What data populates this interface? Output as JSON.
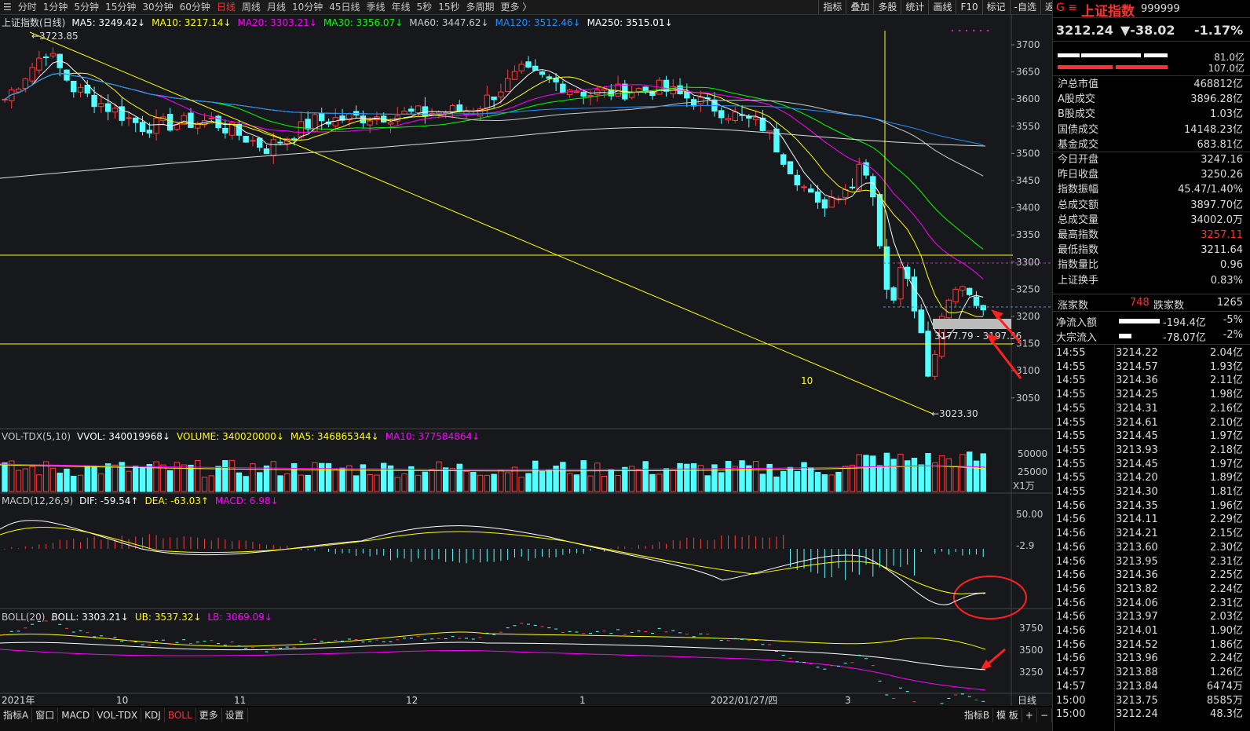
{
  "toolbar": {
    "tabs": [
      "分时",
      "1分钟",
      "5分钟",
      "15分钟",
      "30分钟",
      "60分钟",
      "日线",
      "周线",
      "月线",
      "10分钟",
      "45日线",
      "季线",
      "年线",
      "5秒",
      "15秒",
      "多周期",
      "更多 〉"
    ],
    "active_tab": "日线",
    "right_tools": [
      "指标",
      "叠加",
      "多股",
      "统计",
      "画线",
      "F10",
      "标记",
      "-自选",
      "返回"
    ]
  },
  "main_chart": {
    "title": "上证指数(日线)",
    "indicators": [
      {
        "label": "MA5: 3249.42↓",
        "color": "#ffffff"
      },
      {
        "label": "MA10: 3217.14↓",
        "color": "#ffff00"
      },
      {
        "label": "MA20: 3303.21↓",
        "color": "#ff00ff"
      },
      {
        "label": "MA30: 3356.07↓",
        "color": "#00ff00"
      },
      {
        "label": "MA60: 3447.62↓",
        "color": "#c8c8c8"
      },
      {
        "label": "MA120: 3512.46↓",
        "color": "#1e90ff"
      },
      {
        "label": "MA250: 3515.01↓",
        "color": "#ffffff"
      }
    ],
    "high_label": "3723.85",
    "low_label": "3023.30",
    "range_label": "3177.79 - 3197.36",
    "annotation_10": "10",
    "y_ticks": [
      "3700",
      "3650",
      "3600",
      "3550",
      "3500",
      "3450",
      "3400",
      "3350",
      "3300",
      "3250",
      "3200",
      "3150",
      "3100",
      "3050"
    ]
  },
  "vol_chart": {
    "indicators": [
      {
        "label": "VOL-TDX(5,10)",
        "color": "#c8c8c8"
      },
      {
        "label": "VVOL: 340019968↓",
        "color": "#ffffff"
      },
      {
        "label": "VOLUME: 340020000↓",
        "color": "#ffff00"
      },
      {
        "label": "MA5: 346865344↓",
        "color": "#ffff00"
      },
      {
        "label": "MA10: 377584864↓",
        "color": "#ff00ff"
      }
    ],
    "y_ticks": [
      "50000",
      "25000"
    ],
    "unit": "X1万"
  },
  "macd_chart": {
    "indicators": [
      {
        "label": "MACD(12,26,9)",
        "color": "#c8c8c8"
      },
      {
        "label": "DIF: -59.54↑",
        "color": "#ffffff"
      },
      {
        "label": "DEA: -63.03↑",
        "color": "#ffff00"
      },
      {
        "label": "MACD: 6.98↓",
        "color": "#ff00ff"
      }
    ],
    "y_ticks": [
      "50.00",
      "-2.9"
    ]
  },
  "boll_chart": {
    "indicators": [
      {
        "label": "BOLL(20)",
        "color": "#c8c8c8"
      },
      {
        "label": "BOLL: 3303.21↓",
        "color": "#ffffff"
      },
      {
        "label": "UB: 3537.32↓",
        "color": "#ffff00"
      },
      {
        "label": "LB: 3069.09↓",
        "color": "#ff00ff"
      }
    ],
    "y_ticks": [
      "3750",
      "3500",
      "3250"
    ]
  },
  "x_axis": [
    "2021年",
    "10",
    "11",
    "12",
    "1",
    "2022/01/27/四",
    "3"
  ],
  "x_axis_right": "日线",
  "bottom_tabs": [
    "指标A",
    "窗口",
    "MACD",
    "VOL-TDX",
    "KDJ",
    "BOLL",
    "更多",
    "设置"
  ],
  "bottom_active": "BOLL",
  "bottom_right": [
    "指标B",
    "模 板",
    "+",
    "−"
  ],
  "panel": {
    "flag": "G ≡",
    "name": "上证指数",
    "code": "999999",
    "price": "3212.24",
    "change": "▼-38.02",
    "pct": "-1.17%",
    "bar1_val": "81.0亿",
    "bar2_val": "107.0亿",
    "stats": [
      {
        "k": "沪总市值",
        "v": "468812亿",
        "vc": "#dddddd"
      },
      {
        "k": "A股成交",
        "v": "3896.28亿",
        "vc": "#dddddd"
      },
      {
        "k": "B股成交",
        "v": "1.03亿",
        "vc": "#dddddd"
      },
      {
        "k": "国债成交",
        "v": "14148.23亿",
        "vc": "#dddddd"
      },
      {
        "k": "基金成交",
        "v": "683.81亿",
        "vc": "#dddddd"
      },
      {
        "k": "今日开盘",
        "v": "3247.16",
        "vc": "#dddddd"
      },
      {
        "k": "昨日收盘",
        "v": "3250.26",
        "vc": "#dddddd"
      },
      {
        "k": "指数振幅",
        "v": "45.47/1.40%",
        "vc": "#dddddd"
      },
      {
        "k": "总成交额",
        "v": "3897.70亿",
        "vc": "#dddddd"
      },
      {
        "k": "总成交量",
        "v": "34002.0万",
        "vc": "#dddddd"
      },
      {
        "k": "最高指数",
        "v": "3257.11",
        "vc": "#ff3030"
      },
      {
        "k": "最低指数",
        "v": "3211.64",
        "vc": "#dddddd"
      },
      {
        "k": "指数量比",
        "v": "0.96",
        "vc": "#dddddd"
      },
      {
        "k": "上证换手",
        "v": "0.83%",
        "vc": "#dddddd"
      }
    ],
    "up_label": "涨家数",
    "up_count": "748",
    "down_label": "跌家数",
    "down_count": "1265",
    "flow1_label": "净流入额",
    "flow1_val": "-194.4亿",
    "flow1_pct": "-5%",
    "flow2_label": "大宗流入",
    "flow2_val": "-78.07亿",
    "flow2_pct": "-2%",
    "ticks": [
      [
        "14:55",
        "3214.22",
        "2.04亿"
      ],
      [
        "14:55",
        "3214.57",
        "1.93亿"
      ],
      [
        "14:55",
        "3214.36",
        "2.11亿"
      ],
      [
        "14:55",
        "3214.25",
        "1.98亿"
      ],
      [
        "14:55",
        "3214.31",
        "2.16亿"
      ],
      [
        "14:55",
        "3214.61",
        "2.10亿"
      ],
      [
        "14:55",
        "3214.45",
        "1.97亿"
      ],
      [
        "14:55",
        "3213.93",
        "2.18亿"
      ],
      [
        "14:55",
        "3214.45",
        "1.97亿"
      ],
      [
        "14:55",
        "3214.20",
        "1.89亿"
      ],
      [
        "14:55",
        "3214.30",
        "1.81亿"
      ],
      [
        "14:56",
        "3214.35",
        "1.96亿"
      ],
      [
        "14:56",
        "3214.11",
        "2.29亿"
      ],
      [
        "14:56",
        "3214.21",
        "2.15亿"
      ],
      [
        "14:56",
        "3213.60",
        "2.30亿"
      ],
      [
        "14:56",
        "3213.95",
        "2.31亿"
      ],
      [
        "14:56",
        "3214.36",
        "2.25亿"
      ],
      [
        "14:56",
        "3213.82",
        "2.24亿"
      ],
      [
        "14:56",
        "3214.06",
        "2.31亿"
      ],
      [
        "14:56",
        "3213.97",
        "2.03亿"
      ],
      [
        "14:56",
        "3214.01",
        "1.90亿"
      ],
      [
        "14:56",
        "3214.52",
        "1.86亿"
      ],
      [
        "14:56",
        "3213.96",
        "2.24亿"
      ],
      [
        "14:57",
        "3213.88",
        "1.26亿"
      ],
      [
        "14:57",
        "3213.84",
        "6474万"
      ],
      [
        "15:00",
        "3213.75",
        "8585万"
      ],
      [
        "15:00",
        "3212.24",
        "48.3亿"
      ]
    ]
  }
}
